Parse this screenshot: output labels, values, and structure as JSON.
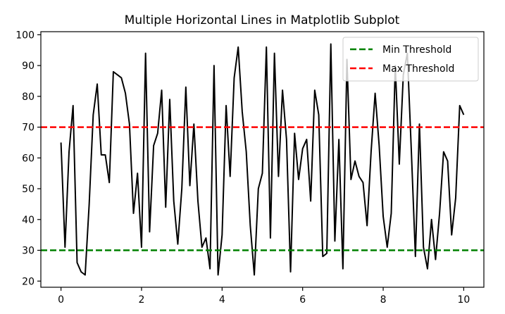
{
  "chart_data": {
    "type": "line",
    "title": "Multiple Horizontal Lines in Matplotlib Subplot",
    "xlabel": "",
    "ylabel": "",
    "xlim": [
      -0.5,
      10.5
    ],
    "ylim": [
      18,
      101
    ],
    "xticks": [
      0,
      2,
      4,
      6,
      8,
      10
    ],
    "yticks": [
      20,
      30,
      40,
      50,
      60,
      70,
      80,
      90,
      100
    ],
    "grid": false,
    "legend_position": "top-right",
    "series": [
      {
        "color": "#000000",
        "x": [
          0.0,
          0.1,
          0.2,
          0.3,
          0.4,
          0.5,
          0.6,
          0.7,
          0.8,
          0.9,
          1.0,
          1.1,
          1.2,
          1.3,
          1.4,
          1.5,
          1.6,
          1.7,
          1.8,
          1.9,
          2.0,
          2.1,
          2.2,
          2.3,
          2.4,
          2.5,
          2.6,
          2.7,
          2.8,
          2.9,
          3.0,
          3.1,
          3.2,
          3.3,
          3.4,
          3.5,
          3.6,
          3.7,
          3.8,
          3.9,
          4.0,
          4.1,
          4.2,
          4.3,
          4.4,
          4.5,
          4.6,
          4.7,
          4.8,
          4.9,
          5.0,
          5.1,
          5.2,
          5.3,
          5.4,
          5.5,
          5.6,
          5.7,
          5.8,
          5.9,
          6.0,
          6.1,
          6.2,
          6.3,
          6.4,
          6.5,
          6.6,
          6.7,
          6.8,
          6.9,
          7.0,
          7.1,
          7.2,
          7.3,
          7.4,
          7.5,
          7.6,
          7.7,
          7.8,
          7.9,
          8.0,
          8.1,
          8.2,
          8.3,
          8.4,
          8.5,
          8.6,
          8.7,
          8.8,
          8.9,
          9.0,
          9.1,
          9.2,
          9.3,
          9.4,
          9.5,
          9.6,
          9.7,
          9.8,
          9.9,
          10.0
        ],
        "y": [
          65,
          31,
          62,
          77,
          26,
          23,
          22,
          45,
          74,
          84,
          61,
          61,
          52,
          88,
          87,
          86,
          81,
          71,
          42,
          55,
          31,
          94,
          36,
          64,
          68,
          82,
          44,
          79,
          46,
          32,
          50,
          83,
          51,
          71,
          46,
          31,
          34,
          24,
          90,
          22,
          35,
          77,
          54,
          86,
          96,
          75,
          62,
          38,
          22,
          50,
          55,
          96,
          34,
          94,
          54,
          82,
          66,
          23,
          68,
          53,
          63,
          66,
          46,
          82,
          74,
          28,
          29,
          97,
          33,
          66,
          24,
          92,
          53,
          59,
          54,
          52,
          38,
          62,
          81,
          64,
          41,
          31,
          42,
          90,
          58,
          87,
          94,
          62,
          28,
          71,
          31,
          24,
          40,
          27,
          42,
          62,
          59,
          35,
          47,
          77,
          74
        ]
      }
    ],
    "hlines": [
      {
        "name": "Min Threshold",
        "y": 30,
        "color": "#008000",
        "style": "dashed"
      },
      {
        "name": "Max Threshold",
        "y": 70,
        "color": "#ff0000",
        "style": "dashed"
      }
    ]
  }
}
